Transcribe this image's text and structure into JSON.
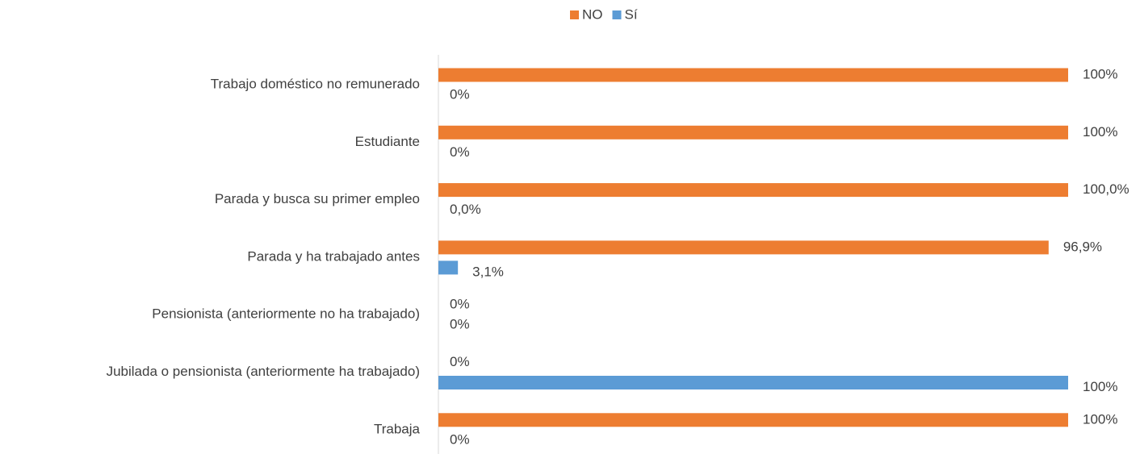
{
  "chart_data": {
    "type": "hbar",
    "categories": [
      "Trabajo doméstico no remunerado",
      "Estudiante",
      "Parada y busca su primer empleo",
      "Parada y ha trabajado antes",
      "Pensionista (anteriormente no ha trabajado)",
      "Jubilada o pensionista (anteriormente ha trabajado)",
      "Trabaja"
    ],
    "series": [
      {
        "name": "NO",
        "color": "#ed7d31",
        "values": [
          100,
          100,
          100,
          96.9,
          0,
          0,
          100
        ],
        "value_labels": [
          "100%",
          "100%",
          "100,0%",
          "96,9%",
          "0%",
          "0%",
          "100%"
        ]
      },
      {
        "name": "Sí",
        "color": "#5b9bd5",
        "values": [
          0,
          0,
          0,
          3.1,
          0,
          100,
          0
        ],
        "value_labels": [
          "0%",
          "0%",
          "0,0%",
          "3,1%",
          "0%",
          "100%",
          "0%"
        ]
      }
    ],
    "xlim": [
      0,
      100
    ],
    "legend": "top"
  }
}
